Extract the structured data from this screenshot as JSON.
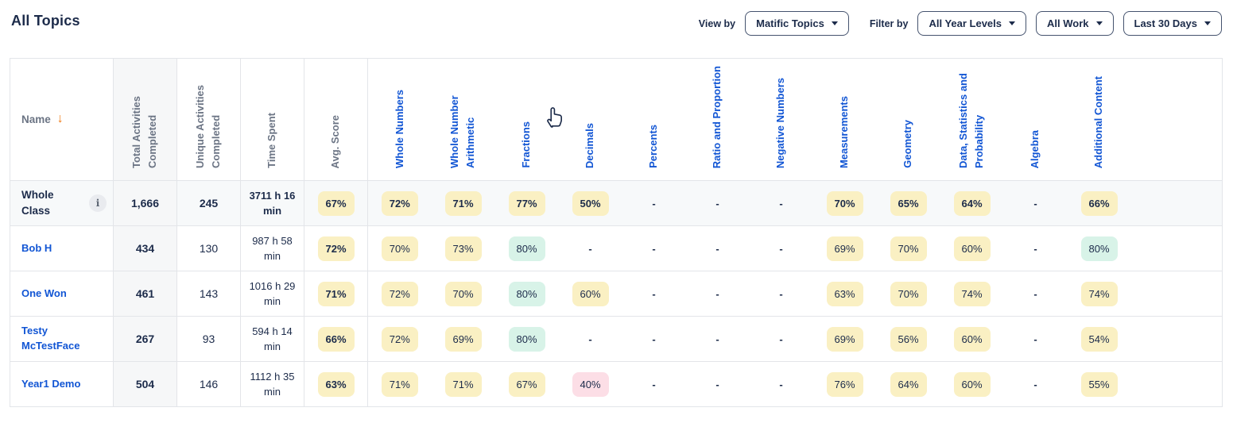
{
  "page": {
    "title": "All Topics"
  },
  "toolbar": {
    "view_by_label": "View by",
    "view_by_value": "Matific Topics",
    "filter_by_label": "Filter by",
    "filters": [
      {
        "value": "All Year Levels"
      },
      {
        "value": "All Work"
      },
      {
        "value": "Last 30 Days"
      }
    ]
  },
  "icons": {
    "sort_desc_arrow": "↓",
    "info": "i"
  },
  "colors": {
    "accent_blue": "#1155d4",
    "navy_text": "#1c2b4a",
    "header_gray": "#6b7484",
    "badge_yellow": "#faf0c3",
    "badge_teal": "#d8f3e8",
    "badge_pink": "#fcdee6",
    "sort_arrow_orange": "#f07b16",
    "summary_row_bg": "#f7f9fa",
    "shaded_column_bg": "#f6f7f8"
  },
  "table": {
    "name_column": {
      "label": "Name"
    },
    "metric_columns": [
      {
        "key": "total-activities",
        "label": "Total Activities Completed",
        "shaded": true
      },
      {
        "key": "unique-activities",
        "label": "Unique Activities Completed",
        "shaded": false
      },
      {
        "key": "time-spent",
        "label": "Time Spent",
        "shaded": false
      },
      {
        "key": "avg-score",
        "label": "Avg. Score",
        "shaded": false
      }
    ],
    "topic_columns": [
      "Whole Numbers",
      "Whole Number Arithmetic",
      "Fractions",
      "Decimals",
      "Percents",
      "Ratio and Proportion",
      "Negative Numbers",
      "Measurements",
      "Geometry",
      "Data, Statistics and Probability",
      "Algebra",
      "Additional Content"
    ],
    "rows": [
      {
        "name": "Whole Class",
        "is_class_summary": true,
        "total": "1,666",
        "unique": "245",
        "time": "3711 h 16 min",
        "avg": {
          "v": "67%",
          "c": "yellow"
        },
        "topics": [
          {
            "v": "72%",
            "c": "yellow"
          },
          {
            "v": "71%",
            "c": "yellow"
          },
          {
            "v": "77%",
            "c": "yellow"
          },
          {
            "v": "50%",
            "c": "yellow"
          },
          {
            "v": "-",
            "c": null
          },
          {
            "v": "-",
            "c": null
          },
          {
            "v": "-",
            "c": null
          },
          {
            "v": "70%",
            "c": "yellow"
          },
          {
            "v": "65%",
            "c": "yellow"
          },
          {
            "v": "64%",
            "c": "yellow"
          },
          {
            "v": "-",
            "c": null
          },
          {
            "v": "66%",
            "c": "yellow"
          }
        ]
      },
      {
        "name": "Bob H",
        "is_class_summary": false,
        "total": "434",
        "unique": "130",
        "time": "987 h 58 min",
        "avg": {
          "v": "72%",
          "c": "yellow"
        },
        "topics": [
          {
            "v": "70%",
            "c": "yellow"
          },
          {
            "v": "73%",
            "c": "yellow"
          },
          {
            "v": "80%",
            "c": "teal"
          },
          {
            "v": "-",
            "c": null
          },
          {
            "v": "-",
            "c": null
          },
          {
            "v": "-",
            "c": null
          },
          {
            "v": "-",
            "c": null
          },
          {
            "v": "69%",
            "c": "yellow"
          },
          {
            "v": "70%",
            "c": "yellow"
          },
          {
            "v": "60%",
            "c": "yellow"
          },
          {
            "v": "-",
            "c": null
          },
          {
            "v": "80%",
            "c": "teal"
          }
        ]
      },
      {
        "name": "One Won",
        "is_class_summary": false,
        "total": "461",
        "unique": "143",
        "time": "1016 h 29 min",
        "avg": {
          "v": "71%",
          "c": "yellow"
        },
        "topics": [
          {
            "v": "72%",
            "c": "yellow"
          },
          {
            "v": "70%",
            "c": "yellow"
          },
          {
            "v": "80%",
            "c": "teal"
          },
          {
            "v": "60%",
            "c": "yellow"
          },
          {
            "v": "-",
            "c": null
          },
          {
            "v": "-",
            "c": null
          },
          {
            "v": "-",
            "c": null
          },
          {
            "v": "63%",
            "c": "yellow"
          },
          {
            "v": "70%",
            "c": "yellow"
          },
          {
            "v": "74%",
            "c": "yellow"
          },
          {
            "v": "-",
            "c": null
          },
          {
            "v": "74%",
            "c": "yellow"
          }
        ]
      },
      {
        "name": "Testy McTestFace",
        "is_class_summary": false,
        "total": "267",
        "unique": "93",
        "time": "594 h 14 min",
        "avg": {
          "v": "66%",
          "c": "yellow"
        },
        "topics": [
          {
            "v": "72%",
            "c": "yellow"
          },
          {
            "v": "69%",
            "c": "yellow"
          },
          {
            "v": "80%",
            "c": "teal"
          },
          {
            "v": "-",
            "c": null
          },
          {
            "v": "-",
            "c": null
          },
          {
            "v": "-",
            "c": null
          },
          {
            "v": "-",
            "c": null
          },
          {
            "v": "69%",
            "c": "yellow"
          },
          {
            "v": "56%",
            "c": "yellow"
          },
          {
            "v": "60%",
            "c": "yellow"
          },
          {
            "v": "-",
            "c": null
          },
          {
            "v": "54%",
            "c": "yellow"
          }
        ]
      },
      {
        "name": "Year1 Demo",
        "is_class_summary": false,
        "total": "504",
        "unique": "146",
        "time": "1112 h 35 min",
        "avg": {
          "v": "63%",
          "c": "yellow"
        },
        "topics": [
          {
            "v": "71%",
            "c": "yellow"
          },
          {
            "v": "71%",
            "c": "yellow"
          },
          {
            "v": "67%",
            "c": "yellow"
          },
          {
            "v": "40%",
            "c": "pink"
          },
          {
            "v": "-",
            "c": null
          },
          {
            "v": "-",
            "c": null
          },
          {
            "v": "-",
            "c": null
          },
          {
            "v": "76%",
            "c": "yellow"
          },
          {
            "v": "64%",
            "c": "yellow"
          },
          {
            "v": "60%",
            "c": "yellow"
          },
          {
            "v": "-",
            "c": null
          },
          {
            "v": "55%",
            "c": "yellow"
          }
        ]
      }
    ]
  }
}
